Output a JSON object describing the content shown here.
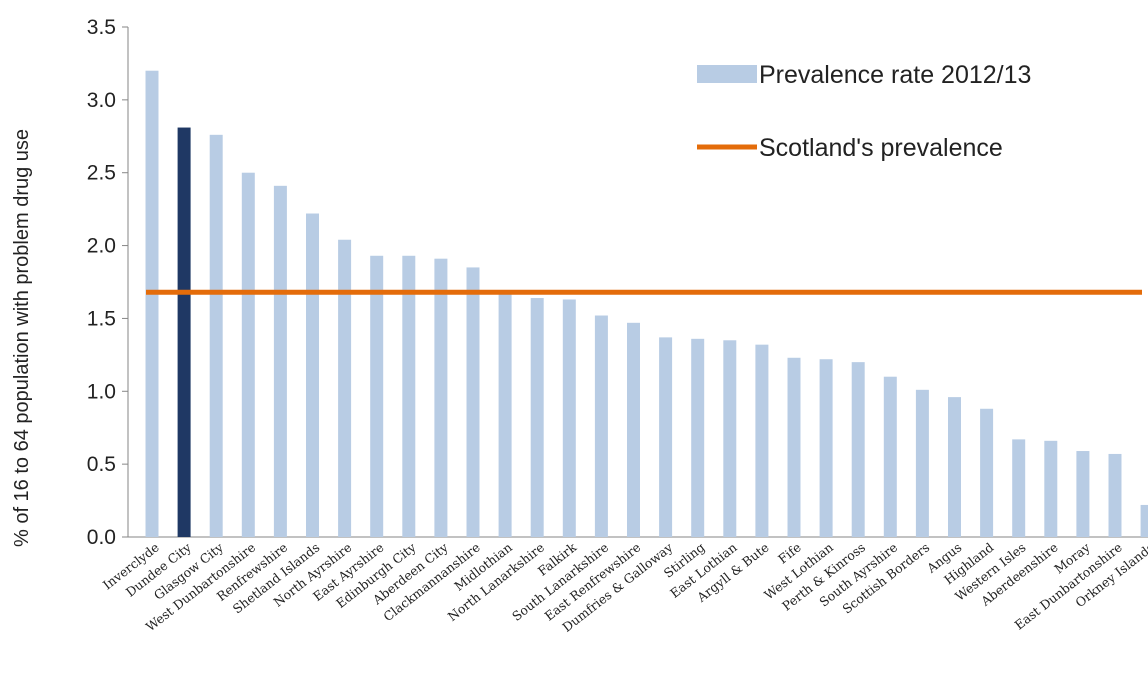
{
  "chart_data": {
    "type": "bar",
    "title": "",
    "ylabel": "% of 16 to 64 population with problem drug use",
    "xlabel": "",
    "ylim": [
      0,
      3.5
    ],
    "yticks": [
      "0.0",
      "0.5",
      "1.0",
      "1.5",
      "2.0",
      "2.5",
      "3.0",
      "3.5"
    ],
    "categories": [
      "Inverclyde",
      "Dundee City",
      "Glasgow City",
      "West Dunbartonshire",
      "Renfrewshire",
      "Shetland Islands",
      "North Ayrshire",
      "East Ayrshire",
      "Edinburgh City",
      "Aberdeen City",
      "Clackmannanshire",
      "Midlothian",
      "North Lanarkshire",
      "Falkirk",
      "South Lanarkshire",
      "East Renfrewshire",
      "Dumfries & Galloway",
      "Stirling",
      "East Lothian",
      "Argyll & Bute",
      "Fife",
      "West Lothian",
      "Perth & Kinross",
      "South Ayrshire",
      "Scottish Borders",
      "Angus",
      "Highland",
      "Western Isles",
      "Aberdeenshire",
      "Moray",
      "East Dunbartonshire",
      "Orkney Islands"
    ],
    "series": [
      {
        "name": "Prevalence rate 2012/13",
        "type": "bar",
        "color": "#b8cce4",
        "values": [
          3.2,
          2.81,
          2.76,
          2.5,
          2.41,
          2.22,
          2.04,
          1.93,
          1.93,
          1.91,
          1.85,
          1.69,
          1.64,
          1.63,
          1.52,
          1.47,
          1.37,
          1.36,
          1.35,
          1.32,
          1.23,
          1.22,
          1.2,
          1.1,
          1.01,
          0.96,
          0.88,
          0.67,
          0.66,
          0.59,
          0.57,
          0.22
        ]
      },
      {
        "name": "Scotland's prevalence",
        "type": "line",
        "color": "#e46c0a",
        "value": 1.68
      }
    ],
    "highlight": {
      "category": "Dundee City",
      "color": "#1f3864"
    },
    "legend_position": "top-right",
    "grid": false
  }
}
